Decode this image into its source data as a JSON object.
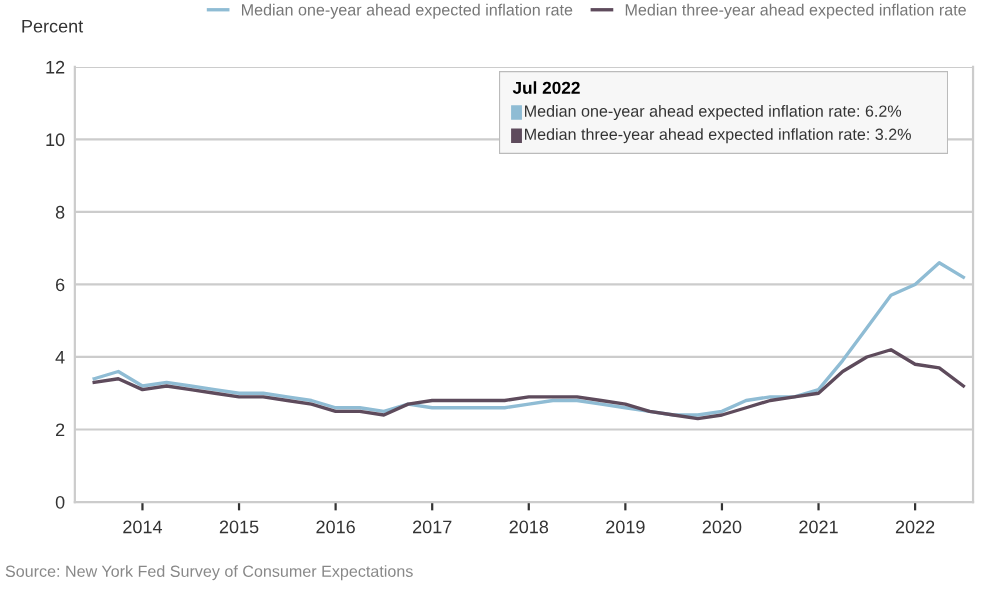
{
  "chart_data": {
    "type": "line",
    "ylabel": "Percent",
    "x": [
      2013.5,
      2013.75,
      2014.0,
      2014.25,
      2014.5,
      2014.75,
      2015.0,
      2015.25,
      2015.5,
      2015.75,
      2016.0,
      2016.25,
      2016.5,
      2016.75,
      2017.0,
      2017.25,
      2017.5,
      2017.75,
      2018.0,
      2018.25,
      2018.5,
      2018.75,
      2019.0,
      2019.25,
      2019.5,
      2019.75,
      2020.0,
      2020.25,
      2020.5,
      2020.75,
      2021.0,
      2021.25,
      2021.5,
      2021.75,
      2022.0,
      2022.25,
      2022.5
    ],
    "series": [
      {
        "name": "Median one-year ahead expected inflation rate",
        "color": "#8fbcd4",
        "values": [
          3.4,
          3.6,
          3.2,
          3.3,
          3.2,
          3.1,
          3.0,
          3.0,
          2.9,
          2.8,
          2.6,
          2.6,
          2.5,
          2.7,
          2.6,
          2.6,
          2.6,
          2.6,
          2.7,
          2.8,
          2.8,
          2.7,
          2.6,
          2.5,
          2.4,
          2.4,
          2.5,
          2.8,
          2.9,
          2.9,
          3.1,
          3.9,
          4.8,
          5.7,
          6.0,
          6.6,
          6.2
        ]
      },
      {
        "name": "Median three-year ahead expected inflation rate",
        "color": "#5e4b5c",
        "values": [
          3.3,
          3.4,
          3.1,
          3.2,
          3.1,
          3.0,
          2.9,
          2.9,
          2.8,
          2.7,
          2.5,
          2.5,
          2.4,
          2.7,
          2.8,
          2.8,
          2.8,
          2.8,
          2.9,
          2.9,
          2.9,
          2.8,
          2.7,
          2.5,
          2.4,
          2.3,
          2.4,
          2.6,
          2.8,
          2.9,
          3.0,
          3.6,
          4.0,
          4.2,
          3.8,
          3.7,
          3.2
        ]
      }
    ],
    "xlim": [
      2013.3,
      2022.6
    ],
    "xticks": [
      2014,
      2015,
      2016,
      2017,
      2018,
      2019,
      2020,
      2021,
      2022
    ],
    "ylim": [
      0,
      12
    ],
    "yticks": [
      0,
      2,
      4,
      6,
      8,
      10,
      12
    ],
    "grid": "y",
    "legend": "top",
    "line_style": "solid",
    "marker": "none",
    "annotations": [
      "Jul 2022",
      "Median one-year ahead expected inflation rate: 6.2%",
      "Median three-year ahead expected inflation rate: 3.2%",
      "Source: New York Fed Survey of Consumer Expectations"
    ]
  }
}
